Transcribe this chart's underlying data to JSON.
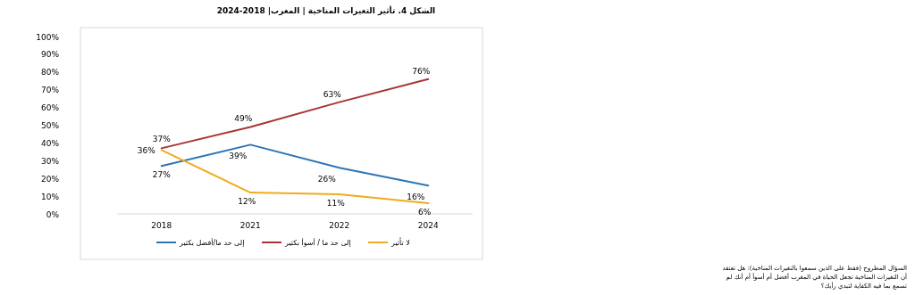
{
  "chart_data": {
    "type": "line",
    "title": "الشكل 4. تأثير التغيرات المناخية | المغرب| 2018-2024",
    "categories": [
      "2018",
      "2021",
      "2022",
      "2024"
    ],
    "series": [
      {
        "name": "إلى حد ما/أفضل بكثير",
        "color": "#2e75b6",
        "values": [
          27,
          39,
          26,
          16
        ],
        "value_labels": [
          "27%",
          "39%",
          "26%",
          "16%"
        ]
      },
      {
        "name": "إلى حد ما / أسوأ بكثير",
        "color": "#a93434",
        "values": [
          37,
          49,
          63,
          76
        ],
        "value_labels": [
          "37%",
          "49%",
          "63%",
          "76%"
        ]
      },
      {
        "name": "لا تأثير",
        "color": "#f0ab1e",
        "values": [
          36,
          12,
          11,
          6
        ],
        "value_labels": [
          "36%",
          "12%",
          "11%",
          "6%"
        ]
      }
    ],
    "ylim": [
      0,
      100
    ],
    "yticks": [
      {
        "value": 0,
        "label": "0%"
      },
      {
        "value": 10,
        "label": "10%"
      },
      {
        "value": 20,
        "label": "20%"
      },
      {
        "value": 30,
        "label": "30%"
      },
      {
        "value": 40,
        "label": "40%"
      },
      {
        "value": 50,
        "label": "50%"
      },
      {
        "value": 60,
        "label": "60%"
      },
      {
        "value": 70,
        "label": "70%"
      },
      {
        "value": 80,
        "label": "80%"
      },
      {
        "value": 90,
        "label": "90%"
      },
      {
        "value": 100,
        "label": "100%"
      }
    ],
    "legend": "bottom",
    "grid": false,
    "marker": "none",
    "line_style": "solid",
    "annotations": [
      "السؤال المطروح (فقط على الذين سمعوا بالتغيرات المناخية): هل تعتقد أن التغيرات المناخية تجعل الحياة في المغرب أفضل أم أسوأ أم أنك لم تسمع بما فيه الكفاية لتبدي رأيك؟"
    ]
  }
}
